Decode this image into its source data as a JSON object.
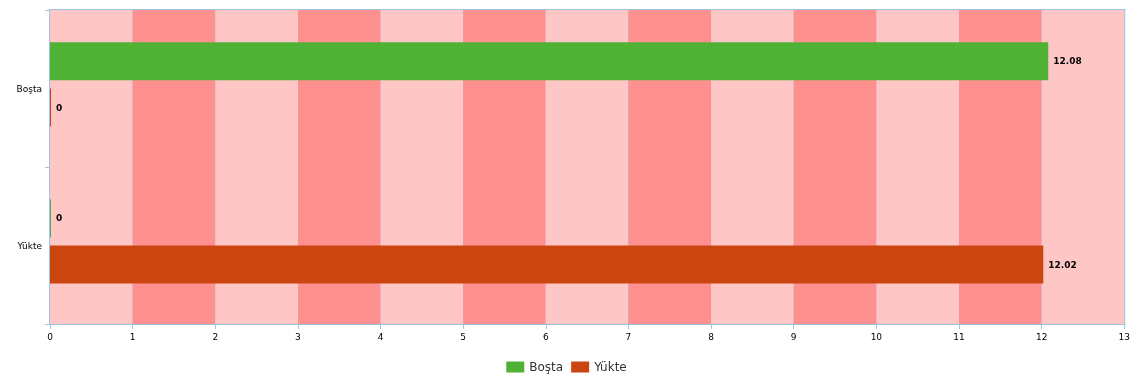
{
  "chart_data": {
    "type": "bar",
    "orientation": "horizontal",
    "categories": [
      "Boşta",
      "Yükte"
    ],
    "series": [
      {
        "name": "Boşta",
        "color": "#4fb234",
        "values": [
          12.08,
          0
        ]
      },
      {
        "name": "Yükte",
        "color": "#cb4511",
        "values": [
          0,
          12.02
        ]
      }
    ],
    "bands": [
      {
        "axis": "x",
        "from": 0,
        "to": 1,
        "color": "#ffc6c6"
      },
      {
        "axis": "x",
        "from": 1,
        "to": 2,
        "color": "#ff9090"
      },
      {
        "axis": "x",
        "from": 2,
        "to": 3,
        "color": "#ffc6c6"
      },
      {
        "axis": "x",
        "from": 3,
        "to": 4,
        "color": "#ff9090"
      },
      {
        "axis": "x",
        "from": 4,
        "to": 5,
        "color": "#ffc6c6"
      },
      {
        "axis": "x",
        "from": 5,
        "to": 6,
        "color": "#ff9090"
      },
      {
        "axis": "x",
        "from": 6,
        "to": 7,
        "color": "#ffc6c6"
      },
      {
        "axis": "x",
        "from": 7,
        "to": 8,
        "color": "#ff9090"
      },
      {
        "axis": "x",
        "from": 8,
        "to": 9,
        "color": "#ffc6c6"
      },
      {
        "axis": "x",
        "from": 9,
        "to": 10,
        "color": "#ff9090"
      },
      {
        "axis": "x",
        "from": 10,
        "to": 11,
        "color": "#ffc6c6"
      },
      {
        "axis": "x",
        "from": 11,
        "to": 12,
        "color": "#ff9090"
      },
      {
        "axis": "x",
        "from": 12,
        "to": 13,
        "color": "#ffc6c6"
      }
    ],
    "xlim": [
      0,
      13
    ],
    "xticks": [
      0,
      1,
      2,
      3,
      4,
      5,
      6,
      7,
      8,
      9,
      10,
      11,
      12,
      13
    ],
    "grid": "x",
    "legend": "bottom",
    "data_labels": true
  }
}
